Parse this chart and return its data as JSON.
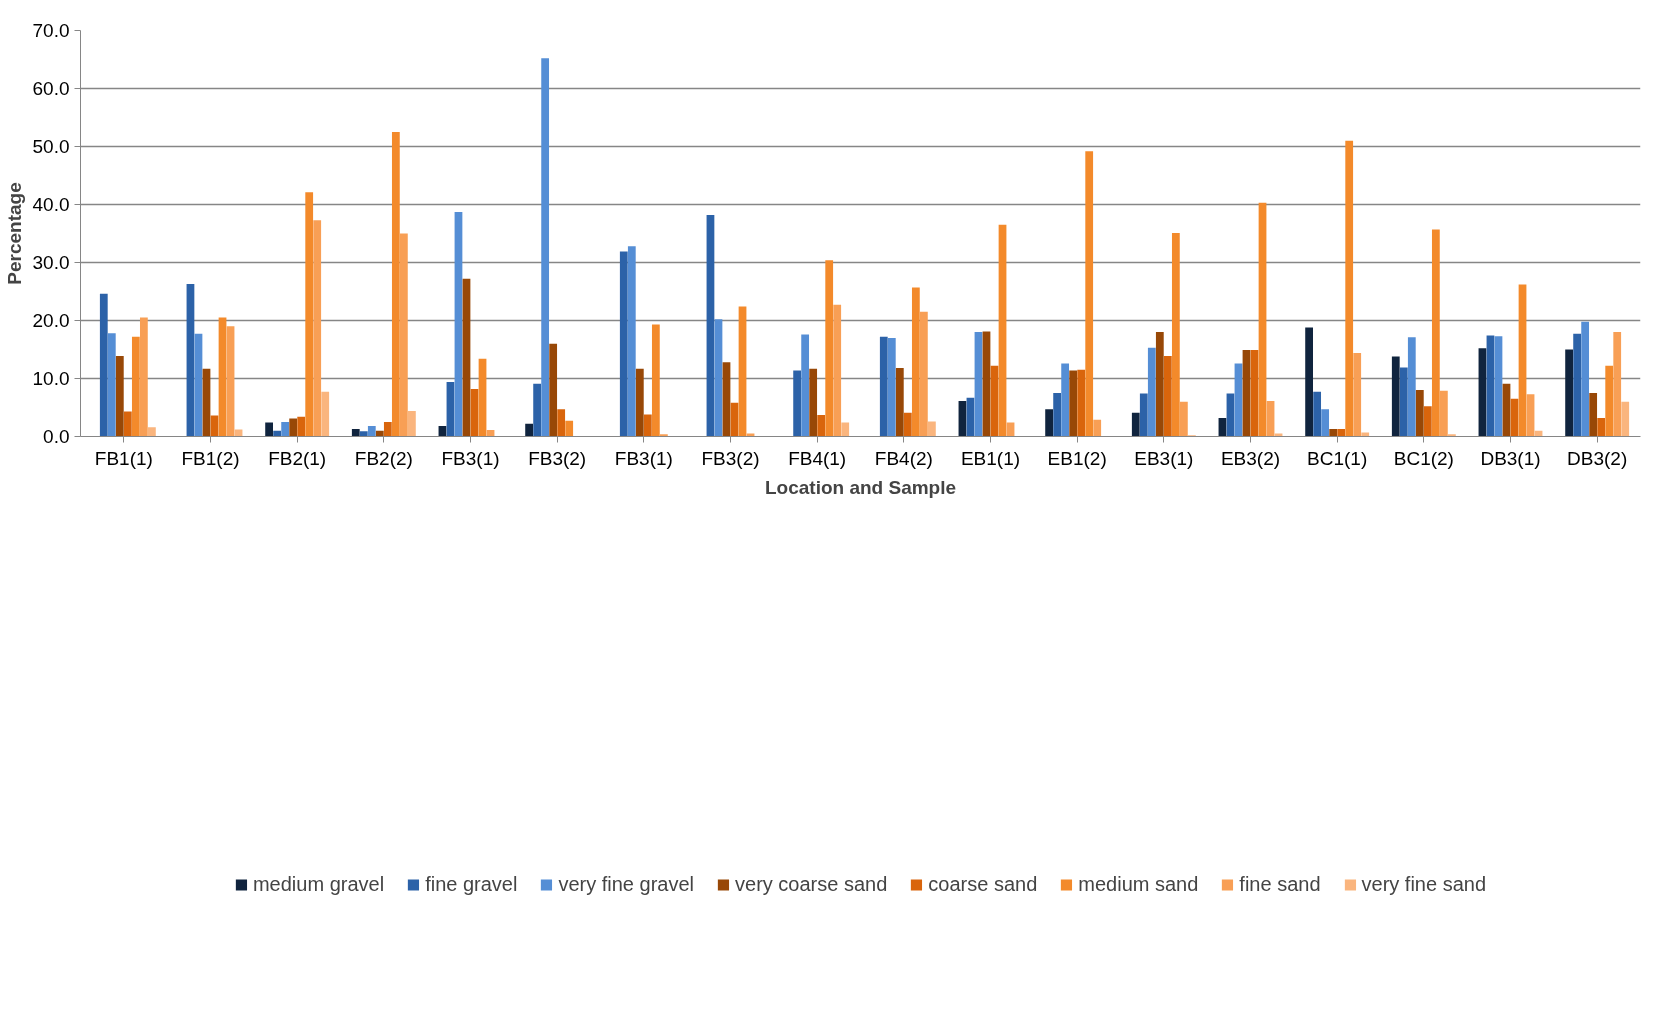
{
  "chart_data": {
    "type": "bar",
    "xlabel": "Location and Sample",
    "ylabel": "Percentage",
    "categories": [
      "FB1(1)",
      "FB1(2)",
      "FB2(1)",
      "FB2(2)",
      "FB3(1)",
      "FB3(2)",
      "FB3(1)",
      "FB3(2)",
      "FB4(1)",
      "FB4(2)",
      "EB1(1)",
      "EB1(2)",
      "EB3(1)",
      "EB3(2)",
      "BC1(1)",
      "BC1(2)",
      "DB3(1)",
      "DB3(2)"
    ],
    "series": [
      {
        "name": "medium gravel",
        "color": "#10243e",
        "values": [
          0,
          0,
          2.4,
          1.3,
          1.8,
          2.2,
          0,
          0,
          0,
          0,
          6.1,
          4.7,
          4.1,
          3.2,
          18.8,
          13.8,
          15.2,
          15.0
        ]
      },
      {
        "name": "fine gravel",
        "color": "#2c62a8",
        "values": [
          24.6,
          26.3,
          1.0,
          0.9,
          9.4,
          9.1,
          31.9,
          38.2,
          11.4,
          17.2,
          6.7,
          7.5,
          7.4,
          7.4,
          7.7,
          11.9,
          17.4,
          17.7
        ]
      },
      {
        "name": "very fine gravel",
        "color": "#558ed5",
        "values": [
          17.8,
          17.7,
          2.5,
          1.8,
          38.7,
          65.2,
          32.8,
          20.2,
          17.6,
          17.0,
          18.0,
          12.6,
          15.3,
          12.6,
          4.7,
          17.1,
          17.3,
          19.8
        ]
      },
      {
        "name": "very coarse sand",
        "color": "#984807",
        "values": [
          13.9,
          11.7,
          3.1,
          1.0,
          27.2,
          16.0,
          11.7,
          12.8,
          11.7,
          11.8,
          18.1,
          11.4,
          18.0,
          14.9,
          1.3,
          8.0,
          9.1,
          7.5
        ]
      },
      {
        "name": "coarse sand",
        "color": "#d9650c",
        "values": [
          4.3,
          3.6,
          3.4,
          2.5,
          8.2,
          4.7,
          3.8,
          5.8,
          3.7,
          4.1,
          12.2,
          11.5,
          13.9,
          14.9,
          1.3,
          5.2,
          6.5,
          3.2
        ]
      },
      {
        "name": "medium sand",
        "color": "#f38a2b",
        "values": [
          17.2,
          20.5,
          42.1,
          52.5,
          13.4,
          2.7,
          19.3,
          22.4,
          30.4,
          25.7,
          36.5,
          49.2,
          35.1,
          40.3,
          51.0,
          35.7,
          26.2,
          12.2
        ]
      },
      {
        "name": "fine sand",
        "color": "#f89f55",
        "values": [
          20.5,
          19.0,
          37.3,
          35.0,
          1.1,
          0,
          0.4,
          0.5,
          22.7,
          21.5,
          2.4,
          2.9,
          6.0,
          6.1,
          14.4,
          7.9,
          7.3,
          18.0
        ]
      },
      {
        "name": "very fine sand",
        "color": "#fab57e",
        "values": [
          1.6,
          1.2,
          7.7,
          4.4,
          0,
          0,
          0,
          0,
          2.4,
          2.6,
          0,
          0,
          0.2,
          0.5,
          0.7,
          0.4,
          1.0,
          6.0
        ]
      }
    ],
    "ylim": [
      0,
      70
    ],
    "yticks": [
      {
        "value": 0,
        "label": "0.0"
      },
      {
        "value": 10,
        "label": "10.0"
      },
      {
        "value": 20,
        "label": "20.0"
      },
      {
        "value": 30,
        "label": "30.0"
      },
      {
        "value": 40,
        "label": "40.0"
      },
      {
        "value": 50,
        "label": "50.0"
      },
      {
        "value": 60,
        "label": "60.0"
      },
      {
        "value": 70,
        "label": "70.0"
      }
    ],
    "grid": "y",
    "legend": "bottom"
  }
}
